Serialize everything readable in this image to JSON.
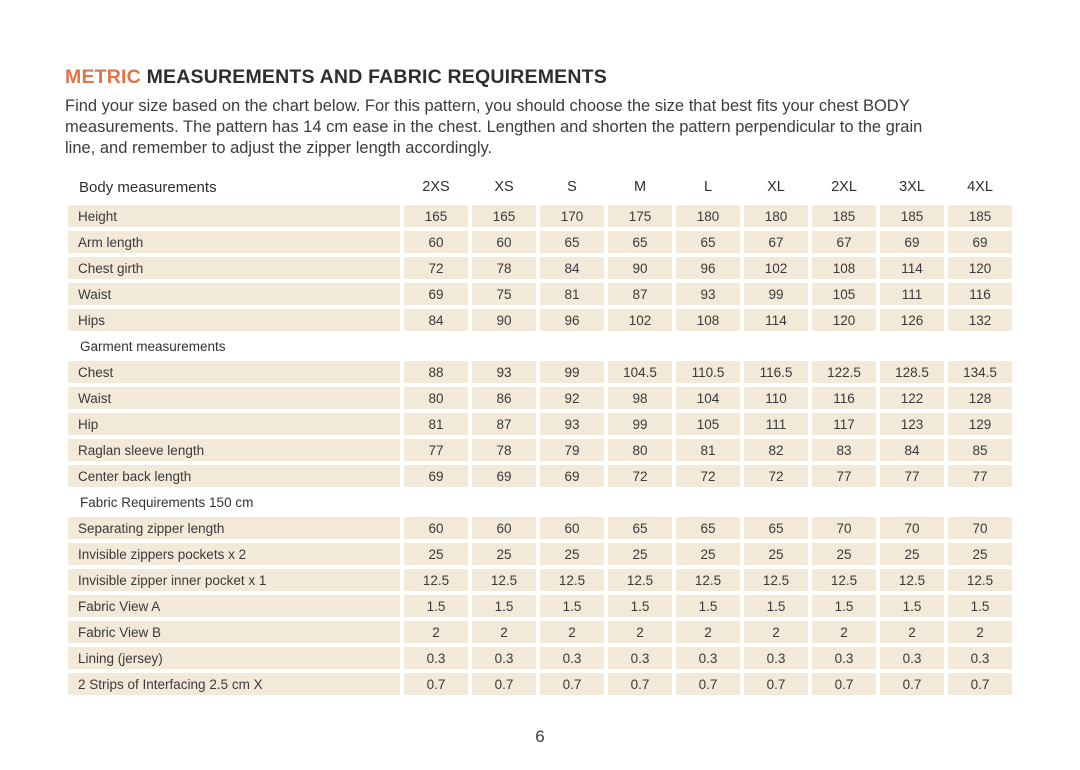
{
  "title": {
    "highlight": "METRIC",
    "rest": " MEASUREMENTS AND FABRIC REQUIREMENTS"
  },
  "intro_lines": [
    "Find your size based on the chart below. For this pattern, you should choose the size that best fits your chest BODY",
    "measurements. The pattern has 14 cm ease in the chest. Lengthen and shorten the pattern perpendicular to the grain",
    "line, and remember to adjust the zipper length accordingly."
  ],
  "colors": {
    "accent_orange": "#de744a",
    "cell_beige": "#f3e9d8",
    "text_dark": "#3a3a3a"
  },
  "table": {
    "header_label": "Body measurements",
    "sizes": [
      "2XS",
      "XS",
      "S",
      "M",
      "L",
      "XL",
      "2XL",
      "3XL",
      "4XL"
    ],
    "sections": [
      {
        "heading": null,
        "rows": [
          {
            "label": "Height",
            "values": [
              "165",
              "165",
              "170",
              "175",
              "180",
              "180",
              "185",
              "185",
              "185"
            ]
          },
          {
            "label": "Arm length",
            "values": [
              "60",
              "60",
              "65",
              "65",
              "65",
              "67",
              "67",
              "69",
              "69"
            ]
          },
          {
            "label": "Chest girth",
            "values": [
              "72",
              "78",
              "84",
              "90",
              "96",
              "102",
              "108",
              "114",
              "120"
            ]
          },
          {
            "label": "Waist",
            "values": [
              "69",
              "75",
              "81",
              "87",
              "93",
              "99",
              "105",
              "111",
              "116"
            ]
          },
          {
            "label": "Hips",
            "values": [
              "84",
              "90",
              "96",
              "102",
              "108",
              "114",
              "120",
              "126",
              "132"
            ]
          }
        ]
      },
      {
        "heading": "Garment measurements",
        "rows": [
          {
            "label": "Chest",
            "values": [
              "88",
              "93",
              "99",
              "104.5",
              "110.5",
              "116.5",
              "122.5",
              "128.5",
              "134.5"
            ]
          },
          {
            "label": "Waist",
            "values": [
              "80",
              "86",
              "92",
              "98",
              "104",
              "110",
              "116",
              "122",
              "128"
            ]
          },
          {
            "label": "Hip",
            "values": [
              "81",
              "87",
              "93",
              "99",
              "105",
              "111",
              "117",
              "123",
              "129"
            ]
          },
          {
            "label": "Raglan sleeve length",
            "values": [
              "77",
              "78",
              "79",
              "80",
              "81",
              "82",
              "83",
              "84",
              "85"
            ]
          },
          {
            "label": "Center back length",
            "values": [
              "69",
              "69",
              "69",
              "72",
              "72",
              "72",
              "77",
              "77",
              "77"
            ]
          }
        ]
      },
      {
        "heading": "Fabric Requirements 150 cm",
        "rows": [
          {
            "label": "Separating zipper length",
            "values": [
              "60",
              "60",
              "60",
              "65",
              "65",
              "65",
              "70",
              "70",
              "70"
            ]
          },
          {
            "label": "Invisible zippers pockets x 2",
            "values": [
              "25",
              "25",
              "25",
              "25",
              "25",
              "25",
              "25",
              "25",
              "25"
            ]
          },
          {
            "label": "Invisible zipper inner pocket x 1",
            "values": [
              "12.5",
              "12.5",
              "12.5",
              "12.5",
              "12.5",
              "12.5",
              "12.5",
              "12.5",
              "12.5"
            ]
          },
          {
            "label": "Fabric View A",
            "values": [
              "1.5",
              "1.5",
              "1.5",
              "1.5",
              "1.5",
              "1.5",
              "1.5",
              "1.5",
              "1.5"
            ]
          },
          {
            "label": "Fabric View B",
            "values": [
              "2",
              "2",
              "2",
              "2",
              "2",
              "2",
              "2",
              "2",
              "2"
            ]
          },
          {
            "label": "Lining (jersey)",
            "values": [
              "0.3",
              "0.3",
              "0.3",
              "0.3",
              "0.3",
              "0.3",
              "0.3",
              "0.3",
              "0.3"
            ]
          },
          {
            "label": "2 Strips of Interfacing  2.5 cm X",
            "values": [
              "0.7",
              "0.7",
              "0.7",
              "0.7",
              "0.7",
              "0.7",
              "0.7",
              "0.7",
              "0.7"
            ]
          }
        ]
      }
    ]
  },
  "footer": {
    "page_number": "6"
  }
}
